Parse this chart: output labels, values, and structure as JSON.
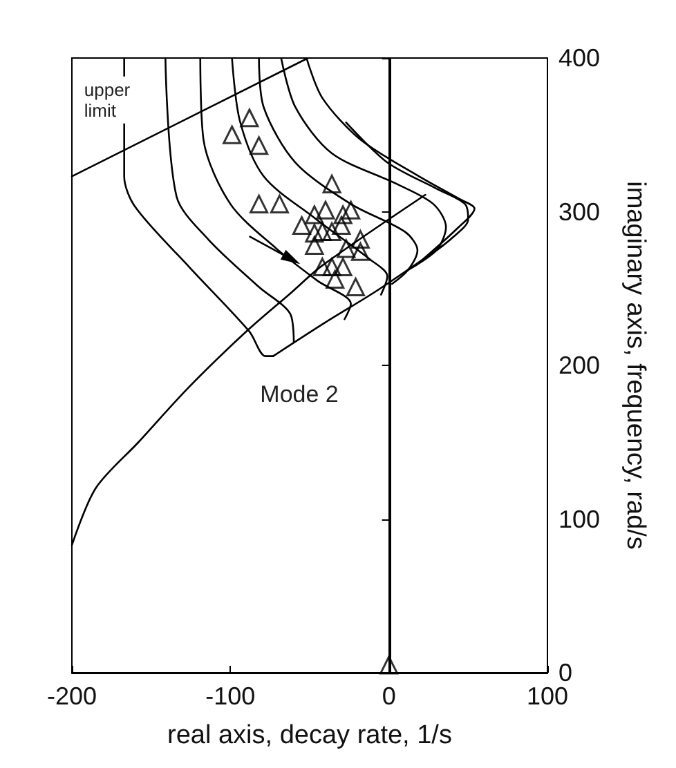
{
  "chart_data": {
    "type": "line",
    "xlabel": "real axis, decay rate, 1/s",
    "ylabel": "imaginary axis, frequency, rad/s",
    "xlim": [
      -200,
      100
    ],
    "xticks": [
      -200,
      -100,
      0,
      100
    ],
    "ylim": [
      0,
      400
    ],
    "yticks": [
      0,
      100,
      200,
      300,
      400
    ],
    "grid": false,
    "line_style": "solid",
    "annotations": [
      "upper limit",
      "Mode 2"
    ],
    "ref_lines": [
      {
        "axis": "x",
        "value": 0,
        "color": "#000000"
      }
    ],
    "series": [
      {
        "color": "#000000",
        "marker": "none",
        "x": [
          -200,
          -51
        ],
        "values": [
          323,
          400
        ]
      },
      {
        "color": "#000000",
        "marker": "none",
        "x": [
          -200,
          -185,
          -158,
          -126,
          -90,
          -62,
          -42,
          23
        ],
        "values": [
          83,
          120,
          150,
          186,
          222,
          247,
          265,
          311
        ]
      },
      {
        "color": "#000000",
        "marker": "none",
        "x": [
          -73,
          -40,
          -7,
          34
        ],
        "values": [
          206,
          228,
          249,
          278
        ]
      },
      {
        "color": "#000000",
        "marker": "none",
        "x": [
          -167,
          -167,
          -160,
          -126,
          -88,
          -78,
          -73
        ],
        "values": [
          400,
          323,
          303,
          264,
          222,
          206,
          206
        ]
      },
      {
        "color": "#000000",
        "marker": "none",
        "x": [
          -141,
          -134,
          -114,
          -82,
          -62,
          -60
        ],
        "values": [
          400,
          310,
          282,
          251,
          233,
          215
        ]
      },
      {
        "color": "#000000",
        "marker": "none",
        "x": [
          -119,
          -117,
          -100,
          -71,
          -45,
          -24,
          -28
        ],
        "values": [
          400,
          347,
          305,
          276,
          255,
          240,
          230
        ]
      },
      {
        "color": "#000000",
        "marker": "none",
        "x": [
          -99,
          -94,
          -79,
          -47,
          -12,
          -1,
          -5
        ],
        "values": [
          400,
          359,
          323,
          296,
          269,
          258,
          246
        ]
      },
      {
        "color": "#000000",
        "marker": "none",
        "x": [
          -82,
          -79,
          -59,
          -24,
          10,
          18,
          12,
          2
        ],
        "values": [
          400,
          368,
          332,
          305,
          287,
          275,
          262,
          253
        ]
      },
      {
        "color": "#000000",
        "marker": "none",
        "x": [
          -68,
          -59,
          -36,
          5,
          28,
          36,
          30,
          12
        ],
        "values": [
          400,
          368,
          338,
          318,
          305,
          290,
          275,
          262
        ]
      },
      {
        "color": "#000000",
        "marker": "none",
        "x": [
          -52,
          -42,
          -18,
          19,
          45,
          54,
          43,
          17
        ],
        "values": [
          400,
          374,
          347,
          323,
          308,
          302,
          289,
          265
        ]
      },
      {
        "color": "#000000",
        "marker": "none",
        "x": [
          -27,
          -1,
          30,
          48,
          50,
          40,
          25
        ],
        "values": [
          358,
          332,
          315,
          305,
          295,
          283,
          271
        ]
      },
      {
        "type": "scatter",
        "color": "#000000",
        "marker": "triangle",
        "x": [
          -88,
          -99,
          -82,
          -82,
          -69,
          -36,
          -47,
          -40,
          -29,
          -24,
          -55,
          -47,
          -42,
          -36,
          -30,
          -47,
          -18,
          -27,
          -18,
          -42,
          -36,
          -29,
          -34,
          -21,
          0
        ],
        "values": [
          361,
          350,
          343,
          305,
          305,
          318,
          298,
          301,
          298,
          301,
          291,
          286,
          287,
          287,
          291,
          278,
          282,
          276,
          274,
          264,
          264,
          264,
          256,
          251,
          5
        ]
      }
    ]
  }
}
